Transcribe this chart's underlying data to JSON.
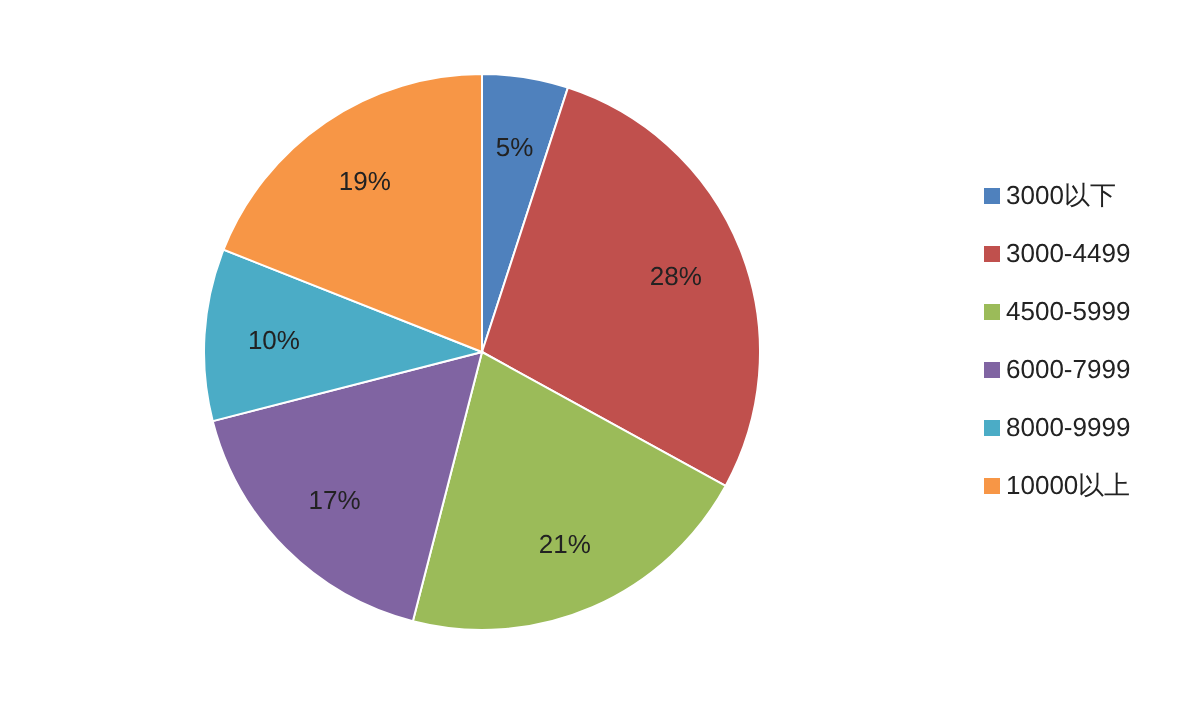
{
  "chart_data": {
    "type": "pie",
    "categories": [
      "3000以下",
      "3000-4499",
      "4500-5999",
      "6000-7999",
      "8000-9999",
      "10000以上"
    ],
    "values": [
      5,
      28,
      21,
      17,
      10,
      19
    ],
    "colors": [
      "#4f81bd",
      "#c0504d",
      "#9bbb59",
      "#8064a2",
      "#4bacc6",
      "#f79646"
    ],
    "value_labels": [
      "5%",
      "28%",
      "21%",
      "17%",
      "10%",
      "19%"
    ],
    "legend": "right"
  }
}
